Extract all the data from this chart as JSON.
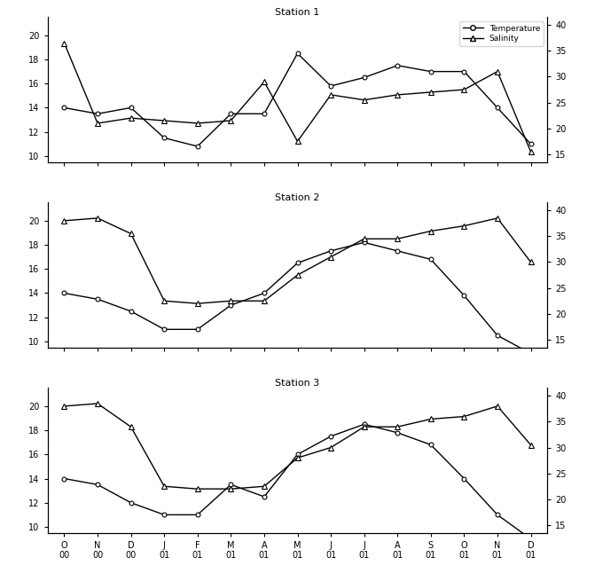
{
  "subplot_titles": [
    "Station 1",
    "Station 2",
    "Station 3"
  ],
  "x_labels": [
    "O\n00",
    "N\n00",
    "D\n00",
    "J\n01",
    "F\n01",
    "M\n01",
    "A\n01",
    "M\n01",
    "J\n01",
    "J\n01",
    "A\n01",
    "S\n01",
    "O\n01",
    "N\n01",
    "D\n01"
  ],
  "temp_data": [
    [
      14.0,
      13.5,
      14.0,
      11.5,
      10.8,
      13.5,
      13.5,
      18.5,
      15.8,
      16.5,
      17.5,
      17.0,
      17.0,
      14.0,
      11.0
    ],
    [
      14.0,
      13.5,
      12.5,
      11.0,
      11.0,
      13.0,
      14.0,
      16.5,
      17.5,
      18.2,
      17.5,
      16.8,
      13.8,
      10.5,
      9.0
    ],
    [
      14.0,
      13.5,
      12.0,
      11.0,
      11.0,
      13.5,
      12.5,
      16.0,
      17.5,
      18.5,
      17.8,
      16.8,
      14.0,
      11.0,
      9.0
    ]
  ],
  "sal_data": [
    [
      36.5,
      21.0,
      22.0,
      21.5,
      21.0,
      21.5,
      29.0,
      17.5,
      26.5,
      25.5,
      26.5,
      27.0,
      27.5,
      31.0,
      15.5
    ],
    [
      38.0,
      38.5,
      35.5,
      22.5,
      22.0,
      22.5,
      22.5,
      27.5,
      31.0,
      34.5,
      34.5,
      36.0,
      37.0,
      38.5,
      30.0
    ],
    [
      38.0,
      38.5,
      34.0,
      22.5,
      22.0,
      22.0,
      22.5,
      28.0,
      30.0,
      34.0,
      34.0,
      35.5,
      36.0,
      38.0,
      30.5
    ]
  ],
  "ylim_temp": [
    9.5,
    21.5
  ],
  "ylim_sal": [
    13.5,
    41.5
  ],
  "yticks_temp": [
    10,
    12,
    14,
    16,
    18,
    20
  ],
  "yticks_sal": [
    15,
    20,
    25,
    30,
    35,
    40
  ],
  "legend_temp": "Temperature",
  "legend_sal": "Salinity",
  "fig_width": 6.71,
  "fig_height": 6.46,
  "dpi": 100
}
